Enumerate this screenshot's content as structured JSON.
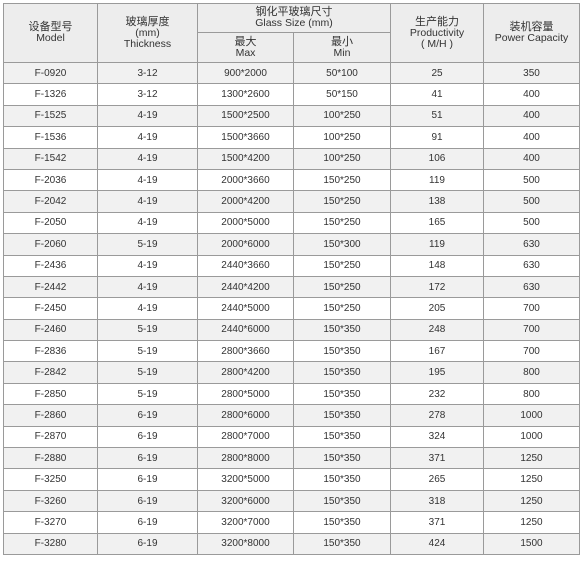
{
  "header": {
    "model": {
      "zh": "设备型号",
      "en": "Model"
    },
    "thickness": {
      "zh": "玻璃厚度",
      "unit": "(mm)",
      "en": "Thickness"
    },
    "glass_size": {
      "zh": "钢化平玻璃尺寸",
      "en": "Glass Size (mm)"
    },
    "max": {
      "zh": "最大",
      "en": "Max"
    },
    "min": {
      "zh": "最小",
      "en": "Min"
    },
    "productivity": {
      "zh": "生产能力",
      "en": "Productivity",
      "unit": "( M/H )"
    },
    "power": {
      "zh": "装机容量",
      "en": "Power Capacity"
    }
  },
  "rows": [
    [
      "F-0920",
      "3-12",
      "900*2000",
      "50*100",
      "25",
      "350"
    ],
    [
      "F-1326",
      "3-12",
      "1300*2600",
      "50*150",
      "41",
      "400"
    ],
    [
      "F-1525",
      "4-19",
      "1500*2500",
      "100*250",
      "51",
      "400"
    ],
    [
      "F-1536",
      "4-19",
      "1500*3660",
      "100*250",
      "91",
      "400"
    ],
    [
      "F-1542",
      "4-19",
      "1500*4200",
      "100*250",
      "106",
      "400"
    ],
    [
      "F-2036",
      "4-19",
      "2000*3660",
      "150*250",
      "119",
      "500"
    ],
    [
      "F-2042",
      "4-19",
      "2000*4200",
      "150*250",
      "138",
      "500"
    ],
    [
      "F-2050",
      "4-19",
      "2000*5000",
      "150*250",
      "165",
      "500"
    ],
    [
      "F-2060",
      "5-19",
      "2000*6000",
      "150*300",
      "119",
      "630"
    ],
    [
      "F-2436",
      "4-19",
      "2440*3660",
      "150*250",
      "148",
      "630"
    ],
    [
      "F-2442",
      "4-19",
      "2440*4200",
      "150*250",
      "172",
      "630"
    ],
    [
      "F-2450",
      "4-19",
      "2440*5000",
      "150*250",
      "205",
      "700"
    ],
    [
      "F-2460",
      "5-19",
      "2440*6000",
      "150*350",
      "248",
      "700"
    ],
    [
      "F-2836",
      "5-19",
      "2800*3660",
      "150*350",
      "167",
      "700"
    ],
    [
      "F-2842",
      "5-19",
      "2800*4200",
      "150*350",
      "195",
      "800"
    ],
    [
      "F-2850",
      "5-19",
      "2800*5000",
      "150*350",
      "232",
      "800"
    ],
    [
      "F-2860",
      "6-19",
      "2800*6000",
      "150*350",
      "278",
      "1000"
    ],
    [
      "F-2870",
      "6-19",
      "2800*7000",
      "150*350",
      "324",
      "1000"
    ],
    [
      "F-2880",
      "6-19",
      "2800*8000",
      "150*350",
      "371",
      "1250"
    ],
    [
      "F-3250",
      "6-19",
      "3200*5000",
      "150*350",
      "265",
      "1250"
    ],
    [
      "F-3260",
      "6-19",
      "3200*6000",
      "150*350",
      "318",
      "1250"
    ],
    [
      "F-3270",
      "6-19",
      "3200*7000",
      "150*350",
      "371",
      "1250"
    ],
    [
      "F-3280",
      "6-19",
      "3200*8000",
      "150*350",
      "424",
      "1500"
    ]
  ]
}
